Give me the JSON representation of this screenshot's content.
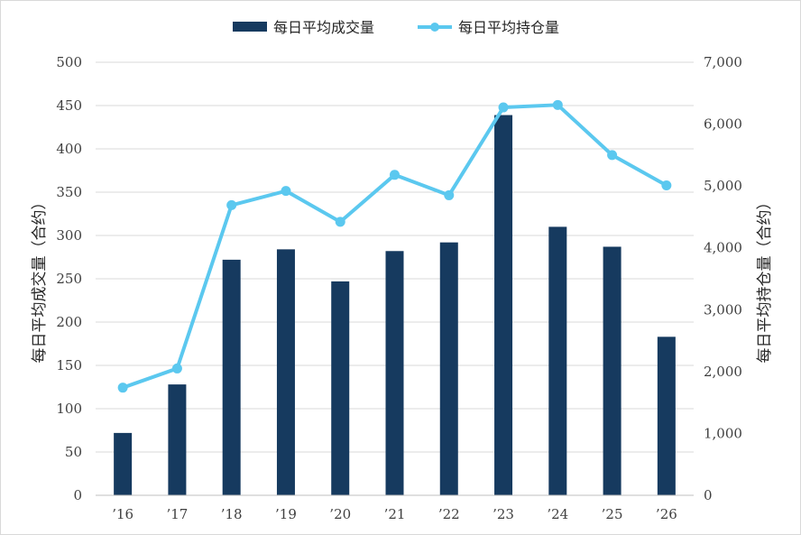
{
  "chart_data": {
    "type": "bar+line",
    "categories": [
      "’16",
      "’17",
      "’18",
      "’19",
      "’20",
      "’21",
      "’22",
      "’23",
      "’24",
      "’25",
      "’26"
    ],
    "series": [
      {
        "name": "每日平均成交量",
        "type": "bar",
        "axis": "left",
        "color": "#163a5f",
        "values": [
          72,
          128,
          272,
          284,
          247,
          282,
          292,
          439,
          310,
          287,
          183
        ]
      },
      {
        "name": "每日平均持仓量",
        "type": "line",
        "axis": "right",
        "color": "#5bc8ef",
        "values": [
          1740,
          2050,
          4690,
          4920,
          4420,
          5180,
          4850,
          6270,
          6310,
          5500,
          5010
        ]
      }
    ],
    "y_left": {
      "label": "每日平均成交量（合约）",
      "range": [
        0,
        500
      ],
      "ticks": [
        "0",
        "50",
        "100",
        "150",
        "200",
        "250",
        "300",
        "350",
        "400",
        "450",
        "500"
      ]
    },
    "y_right": {
      "label": "每日平均持仓量（合约）",
      "range": [
        0,
        7000
      ],
      "ticks": [
        "0",
        "1,000",
        "2,000",
        "3,000",
        "4,000",
        "5,000",
        "6,000",
        "7,000"
      ]
    },
    "grid": true,
    "legend_position": "top-center"
  }
}
